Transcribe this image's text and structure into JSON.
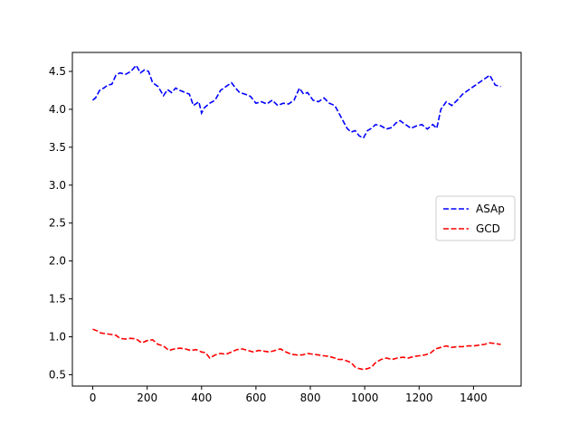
{
  "chart_data": {
    "type": "line",
    "title": "",
    "xlabel": "",
    "ylabel": "",
    "xlim": [
      -75,
      1575
    ],
    "ylim": [
      0.35,
      4.75
    ],
    "xticks": [
      0,
      200,
      400,
      600,
      800,
      1000,
      1200,
      1400
    ],
    "yticks": [
      0.5,
      1.0,
      1.5,
      2.0,
      2.5,
      3.0,
      3.5,
      4.0,
      4.5
    ],
    "xtick_labels": [
      "0",
      "200",
      "400",
      "600",
      "800",
      "1000",
      "1200",
      "1400"
    ],
    "ytick_labels": [
      "0.5",
      "1.0",
      "1.5",
      "2.0",
      "2.5",
      "3.0",
      "3.5",
      "4.0",
      "4.5"
    ],
    "grid": false,
    "legend": {
      "placement": "center-right"
    },
    "series": [
      {
        "name": "ASAp",
        "color": "#0000ff",
        "style": "dashed",
        "x": [
          0,
          10,
          25,
          40,
          55,
          70,
          85,
          100,
          120,
          140,
          160,
          175,
          190,
          205,
          220,
          240,
          260,
          275,
          290,
          305,
          320,
          340,
          355,
          370,
          390,
          400,
          410,
          430,
          450,
          470,
          490,
          510,
          525,
          540,
          560,
          580,
          600,
          620,
          640,
          660,
          680,
          700,
          720,
          740,
          760,
          775,
          790,
          810,
          830,
          850,
          870,
          890,
          905,
          920,
          935,
          950,
          965,
          980,
          995,
          1010,
          1025,
          1040,
          1060,
          1080,
          1100,
          1115,
          1130,
          1150,
          1170,
          1190,
          1210,
          1230,
          1250,
          1265,
          1280,
          1300,
          1320,
          1340,
          1360,
          1380,
          1400,
          1420,
          1440,
          1460,
          1480,
          1500
        ],
        "values": [
          4.12,
          4.15,
          4.25,
          4.28,
          4.32,
          4.33,
          4.45,
          4.48,
          4.46,
          4.5,
          4.58,
          4.48,
          4.52,
          4.5,
          4.35,
          4.3,
          4.18,
          4.26,
          4.22,
          4.28,
          4.25,
          4.22,
          4.2,
          4.05,
          4.1,
          3.95,
          4.02,
          4.08,
          4.12,
          4.25,
          4.3,
          4.35,
          4.28,
          4.22,
          4.2,
          4.17,
          4.08,
          4.1,
          4.07,
          4.12,
          4.05,
          4.08,
          4.07,
          4.12,
          4.28,
          4.2,
          4.22,
          4.12,
          4.1,
          4.15,
          4.08,
          4.05,
          3.95,
          3.85,
          3.75,
          3.7,
          3.72,
          3.65,
          3.62,
          3.72,
          3.75,
          3.8,
          3.78,
          3.74,
          3.76,
          3.82,
          3.85,
          3.8,
          3.75,
          3.78,
          3.8,
          3.74,
          3.8,
          3.75,
          4.0,
          4.1,
          4.05,
          4.12,
          4.2,
          4.25,
          4.3,
          4.35,
          4.4,
          4.45,
          4.32,
          4.3
        ]
      },
      {
        "name": "GCD",
        "color": "#ff0000",
        "style": "dashed",
        "x": [
          0,
          15,
          30,
          50,
          70,
          85,
          100,
          120,
          140,
          160,
          180,
          200,
          220,
          240,
          260,
          280,
          300,
          320,
          340,
          360,
          380,
          400,
          415,
          430,
          450,
          470,
          490,
          510,
          530,
          550,
          570,
          590,
          610,
          630,
          650,
          670,
          690,
          710,
          730,
          750,
          770,
          790,
          810,
          830,
          850,
          870,
          890,
          905,
          920,
          935,
          950,
          965,
          980,
          995,
          1010,
          1025,
          1040,
          1060,
          1080,
          1100,
          1120,
          1140,
          1160,
          1180,
          1200,
          1220,
          1240,
          1260,
          1280,
          1300,
          1320,
          1340,
          1360,
          1380,
          1400,
          1420,
          1440,
          1460,
          1480,
          1500
        ],
        "values": [
          1.1,
          1.08,
          1.05,
          1.04,
          1.03,
          1.02,
          0.98,
          0.97,
          0.98,
          0.97,
          0.92,
          0.95,
          0.96,
          0.9,
          0.88,
          0.82,
          0.84,
          0.85,
          0.84,
          0.82,
          0.83,
          0.8,
          0.79,
          0.72,
          0.76,
          0.78,
          0.77,
          0.8,
          0.83,
          0.84,
          0.82,
          0.8,
          0.82,
          0.81,
          0.8,
          0.82,
          0.84,
          0.8,
          0.77,
          0.76,
          0.76,
          0.78,
          0.77,
          0.76,
          0.75,
          0.74,
          0.72,
          0.7,
          0.7,
          0.68,
          0.66,
          0.6,
          0.58,
          0.57,
          0.58,
          0.6,
          0.66,
          0.7,
          0.72,
          0.7,
          0.72,
          0.73,
          0.72,
          0.74,
          0.75,
          0.76,
          0.78,
          0.84,
          0.86,
          0.88,
          0.86,
          0.87,
          0.87,
          0.88,
          0.88,
          0.89,
          0.9,
          0.92,
          0.91,
          0.9
        ]
      }
    ]
  }
}
